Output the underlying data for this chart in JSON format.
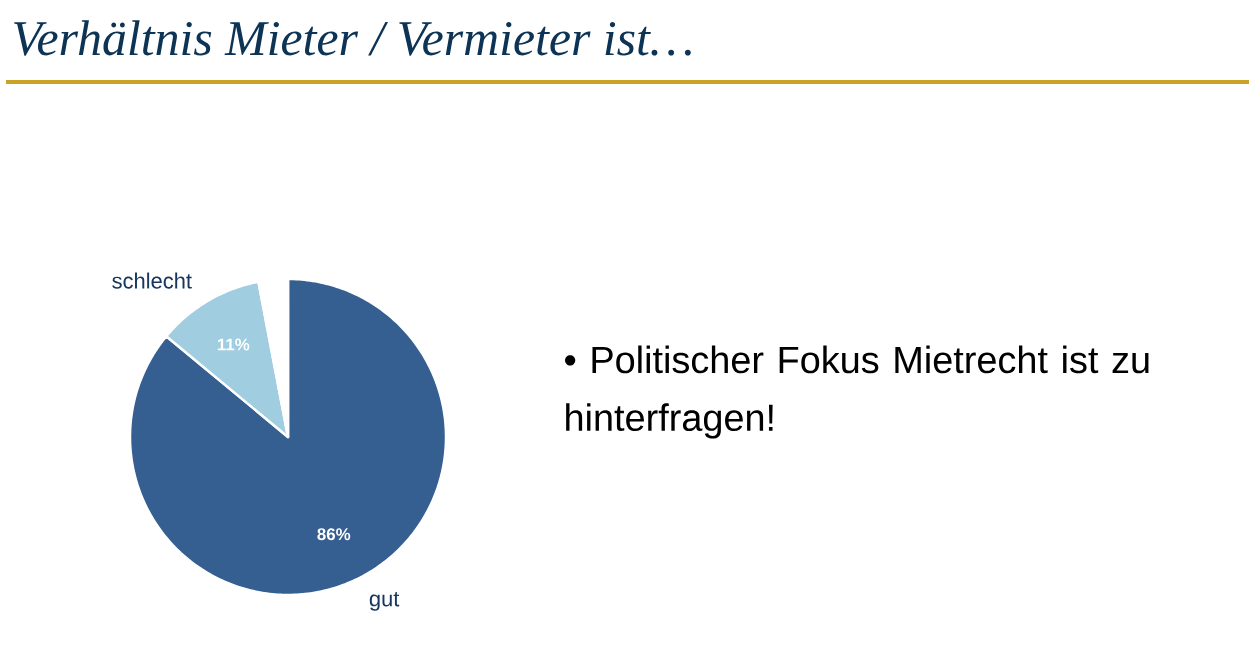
{
  "chart_data": {
    "type": "pie",
    "title": "Verhältnis Mieter / Vermieter ist…",
    "categories": [
      "gut",
      "schlecht",
      null
    ],
    "values": [
      86,
      11,
      3
    ],
    "colors": [
      "#365f91",
      "#a0cde0",
      "#ffffff"
    ],
    "value_labels": [
      "86%",
      "11%",
      null
    ],
    "annotations": [
      "• Politischer Fokus Mietrecht ist zu hinterfragen!"
    ]
  }
}
